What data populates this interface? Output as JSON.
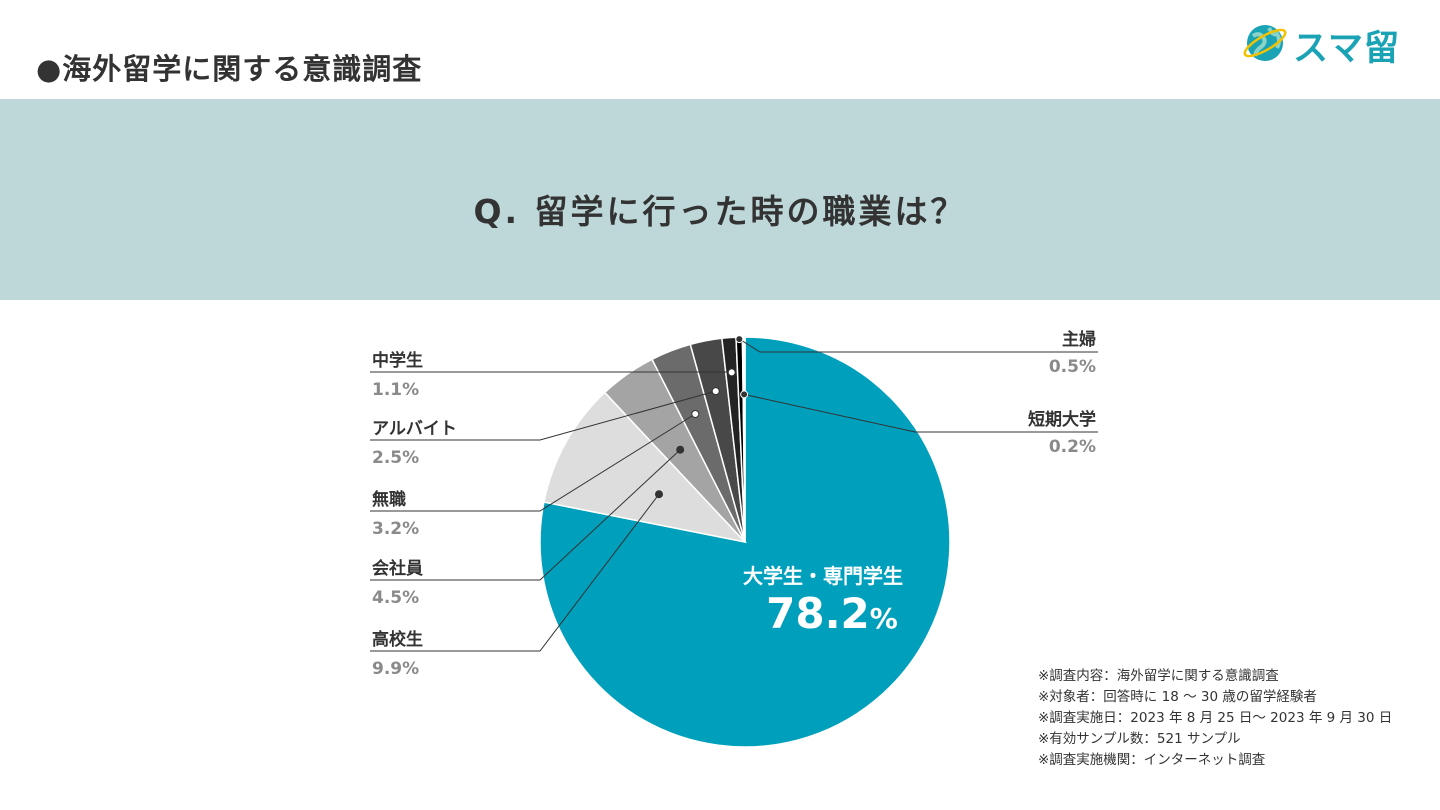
{
  "header": {
    "survey_title": "●海外留学に関する意識調査",
    "logo_text": "スマ留"
  },
  "banner": {
    "question": "Q. 留学に行った時の職業は？"
  },
  "chart_data": {
    "type": "pie",
    "title": "",
    "slices": [
      {
        "label": "大学生・専門学生",
        "value": 78.2,
        "value_text": "78.2",
        "unit": "%",
        "color": "#00a0bc",
        "label_color": "#ffffff",
        "side": "inside"
      },
      {
        "label": "高校生",
        "value": 9.9,
        "value_text": "9.9%",
        "color": "#dddddd",
        "side": "left"
      },
      {
        "label": "会社員",
        "value": 4.5,
        "value_text": "4.5%",
        "color": "#a4a4a4",
        "side": "left"
      },
      {
        "label": "無職",
        "value": 3.2,
        "value_text": "3.2%",
        "color": "#6b6b6b",
        "side": "left"
      },
      {
        "label": "アルバイト",
        "value": 2.5,
        "value_text": "2.5%",
        "color": "#484848",
        "side": "left"
      },
      {
        "label": "中学生",
        "value": 1.1,
        "value_text": "1.1%",
        "color": "#242424",
        "side": "left"
      },
      {
        "label": "主婦",
        "value": 0.5,
        "value_text": "0.5%",
        "color": "#000000",
        "side": "right"
      },
      {
        "label": "短期大学",
        "value": 0.2,
        "value_text": "0.2%",
        "color": "#ffffff",
        "side": "right"
      }
    ],
    "start_angle_deg": 0,
    "direction": "clockwise",
    "separator_color": "#ffffff",
    "leader_line_color": "#333333",
    "label_text_color": "#333333",
    "value_text_color": "#8a8a8a"
  },
  "notes": [
    "※調査内容：海外留学に関する意識調査",
    "※対象者：回答時に 18 〜 30 歳の留学経験者",
    "※調査実施日：2023 年 8 月 25 日〜 2023 年 9 月 30 日",
    "※有効サンプル数：521 サンプル",
    "※調査実施機関：インターネット調査"
  ],
  "colors": {
    "banner": "#bed8da",
    "accent": "#00a0bc",
    "logo": "#1aa3b5"
  }
}
